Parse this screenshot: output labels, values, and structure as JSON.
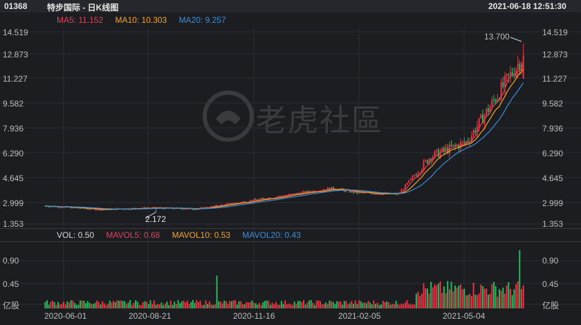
{
  "header": {
    "code": "01368",
    "title": "特步国际 - 日K线图",
    "datetime": "2021-06-18 12:51:30"
  },
  "ma": {
    "ma5": {
      "label": "MA5: 11.152",
      "color": "#e0435a"
    },
    "ma10": {
      "label": "MA10: 10.303",
      "color": "#f5a623"
    },
    "ma20": {
      "label": "MA20: 9.257",
      "color": "#3a8fd9"
    }
  },
  "price_axis": [
    "14.519",
    "12.873",
    "11.227",
    "9.582",
    "7.936",
    "6.290",
    "4.645",
    "2.999",
    "1.353"
  ],
  "max_annotation": "13.700",
  "min_annotation": "2.172",
  "vol": {
    "label": "VOL: 0.50",
    "mavol5": {
      "label": "MAVOL5: 0.68",
      "color": "#e0435a"
    },
    "mavol10": {
      "label": "MAVOL10: 0.53",
      "color": "#f5a623"
    },
    "mavol20": {
      "label": "MAVOL20: 0.43",
      "color": "#3a8fd9"
    }
  },
  "vol_axis": [
    "0.90",
    "0.45",
    "亿股"
  ],
  "x_axis": [
    "2020-06-01",
    "2020-08-21",
    "2020-11-16",
    "2021-02-05",
    "2021-05-04"
  ],
  "watermark": "老虎社區",
  "colors": {
    "up": "#f23645",
    "down": "#22c55e"
  },
  "chart_data": {
    "type": "candlestick",
    "price_range": [
      1.353,
      14.519
    ],
    "volume_range": [
      0,
      0.9
    ],
    "approx_close_path": [
      {
        "date": "2020-06-01",
        "close": 2.6
      },
      {
        "date": "2020-07-15",
        "close": 2.35
      },
      {
        "date": "2020-08-21",
        "close": 2.45
      },
      {
        "date": "2020-10-01",
        "close": 2.4
      },
      {
        "date": "2020-11-16",
        "close": 3.0
      },
      {
        "date": "2020-12-20",
        "close": 3.45
      },
      {
        "date": "2021-01-15",
        "close": 3.8
      },
      {
        "date": "2021-02-05",
        "close": 3.5
      },
      {
        "date": "2021-03-10",
        "close": 3.4
      },
      {
        "date": "2021-04-05",
        "close": 6.0
      },
      {
        "date": "2021-05-04",
        "close": 7.0
      },
      {
        "date": "2021-06-18",
        "close": 12.9
      }
    ],
    "max_price": 13.7,
    "min_price": 2.172
  }
}
